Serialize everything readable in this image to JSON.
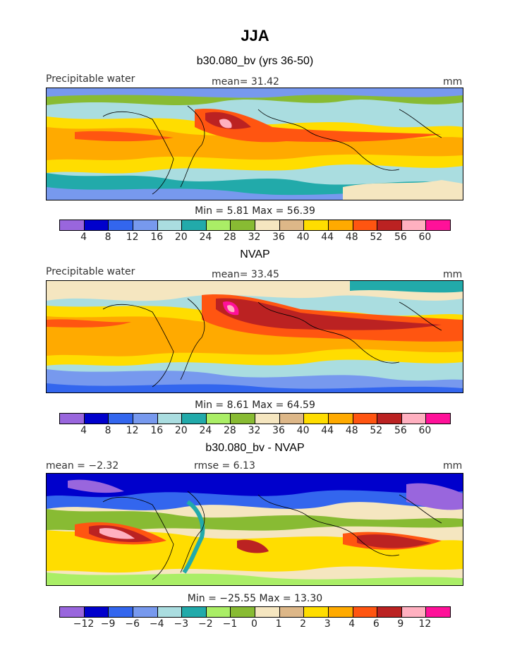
{
  "title": "JJA",
  "panels": [
    {
      "subtitle": "b30.080_bv (yrs 36-50)",
      "left_label": "Precipitable water",
      "center_label": "mean=   31.42",
      "right_label": "mm",
      "min_max": "Min =    5.81  Max =   56.39",
      "ticks": [
        "4",
        "8",
        "12",
        "16",
        "20",
        "24",
        "28",
        "32",
        "36",
        "40",
        "44",
        "48",
        "52",
        "56",
        "60"
      ]
    },
    {
      "subtitle": "NVAP",
      "left_label": "Precipitable water",
      "center_label": "mean=   33.45",
      "right_label": "mm",
      "min_max": "Min =    8.61  Max =   64.59",
      "ticks": [
        "4",
        "8",
        "12",
        "16",
        "20",
        "24",
        "28",
        "32",
        "36",
        "40",
        "44",
        "48",
        "52",
        "56",
        "60"
      ]
    },
    {
      "subtitle": "b30.080_bv - NVAP",
      "left_label": "mean =   −2.32",
      "center_label": "rmse =    6.13",
      "right_label": "mm",
      "min_max": "Min = −25.55  Max =   13.30",
      "ticks": [
        "−12",
        "−9",
        "−6",
        "−4",
        "−3",
        "−2",
        "−1",
        "0",
        "1",
        "2",
        "3",
        "4",
        "6",
        "9",
        "12"
      ]
    }
  ],
  "colorbar_colors": [
    "#9966dd",
    "#0000cc",
    "#3366ee",
    "#7799ee",
    "#aadde0",
    "#22aaaa",
    "#aaee66",
    "#88bb33",
    "#f5e6c0",
    "#ddb788",
    "#ffdd00",
    "#ffaa00",
    "#ff5511",
    "#bb2222",
    "#ffb0c0",
    "#ff1199"
  ]
}
